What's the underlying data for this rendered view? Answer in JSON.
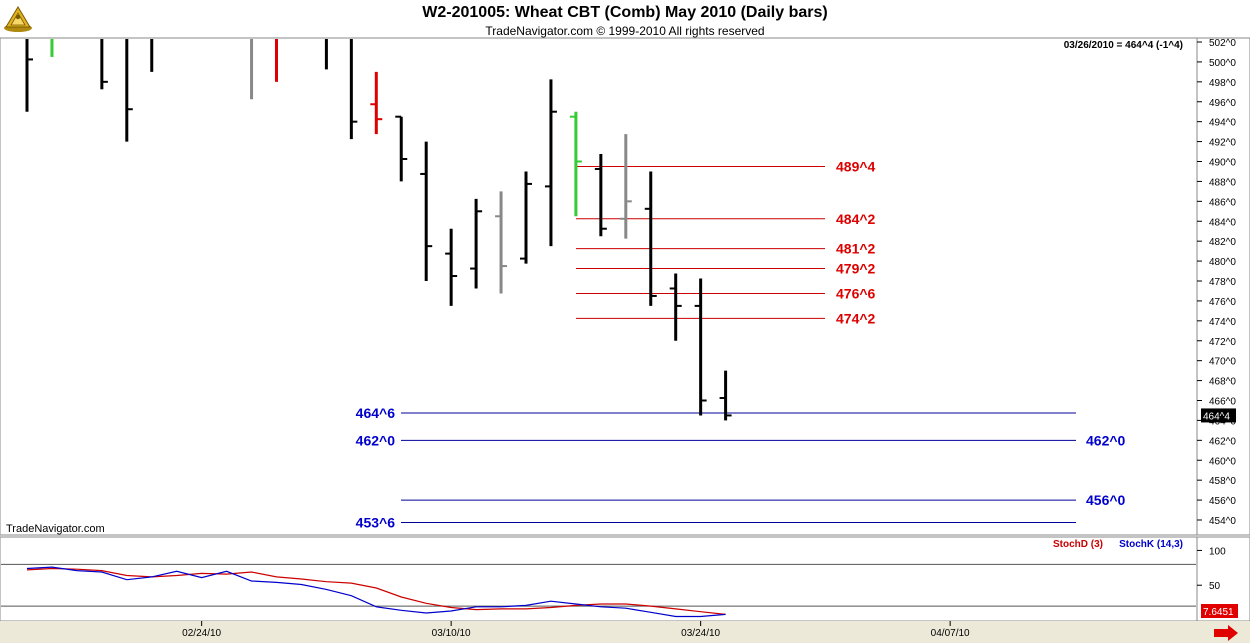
{
  "header": {
    "title": "W2-201005:  Wheat CBT (Comb) May 2010  (Daily bars)",
    "subtitle": "TradeNavigator.com © 1999-2010 All rights reserved",
    "quote": "03/26/2010 = 464^4 (-1^4)",
    "watermark": "TradeNavigator.com",
    "logo_icon": "navigator-sextant-logo-icon"
  },
  "colors": {
    "up_tick": "#33cc33",
    "down_tick": "#dd0000",
    "neutral_bar": "#000000",
    "grey_bar": "#888888",
    "resistance_line": "#cc0000",
    "support_line": "#000099",
    "resistance_label": "#dd0000",
    "support_label": "#0000cc",
    "stoch_d": "#cc0000",
    "stoch_k": "#0000cc"
  },
  "chart_data": [
    {
      "type": "ohlc",
      "price_unit": "cents (x^y = x + y/8)",
      "ylim": [
        453,
        503
      ],
      "y_ticks": [
        "502^0",
        "500^0",
        "498^0",
        "496^0",
        "494^0",
        "492^0",
        "490^0",
        "488^0",
        "486^0",
        "484^0",
        "482^0",
        "480^0",
        "478^0",
        "476^0",
        "474^0",
        "472^0",
        "470^0",
        "468^0",
        "466^0",
        "464^0",
        "462^0",
        "460^0",
        "458^0",
        "456^0",
        "454^0"
      ],
      "y_tick_values": [
        502,
        500,
        498,
        496,
        494,
        492,
        490,
        488,
        486,
        484,
        482,
        480,
        478,
        476,
        474,
        472,
        470,
        468,
        466,
        464,
        462,
        460,
        458,
        456,
        454
      ],
      "x_tick_labels": [
        "02/24/10",
        "03/10/10",
        "03/24/10",
        "04/07/10"
      ],
      "x_tick_bar_index": [
        7,
        17,
        27,
        37
      ],
      "last_price_label": "464^4",
      "last_price": 464.5,
      "bars": [
        {
          "high": 503,
          "low": 495,
          "open": 503,
          "close": 500.25,
          "color": "black"
        },
        {
          "high": 503,
          "low": 500.5,
          "open": 503,
          "close": 503,
          "color": "green"
        },
        {
          "high": 503,
          "low": 503,
          "open": 503,
          "close": 503,
          "color": "red"
        },
        {
          "high": 503,
          "low": 497.25,
          "open": 503,
          "close": 498,
          "color": "black"
        },
        {
          "high": 503,
          "low": 492,
          "open": 503,
          "close": 495.25,
          "color": "black"
        },
        {
          "high": 503,
          "low": 499,
          "open": 503,
          "close": 503,
          "color": "black"
        },
        {
          "high": 503,
          "low": 503,
          "open": 503,
          "close": 503,
          "color": "red"
        },
        {
          "high": 503,
          "low": 502.5,
          "open": 503,
          "close": 502.75,
          "color": "black"
        },
        {
          "high": 503,
          "low": 502.75,
          "open": 503,
          "close": 503,
          "color": "green"
        },
        {
          "high": 503,
          "low": 496.25,
          "open": 503,
          "close": 503,
          "color": "grey"
        },
        {
          "high": 503,
          "low": 498,
          "open": 503,
          "close": 503,
          "color": "red"
        },
        {
          "high": 503,
          "low": 503,
          "open": 503,
          "close": 503,
          "color": "black"
        },
        {
          "high": 503,
          "low": 499.25,
          "open": 503,
          "close": 503,
          "color": "black"
        },
        {
          "high": 503,
          "low": 492.25,
          "open": 503,
          "close": 494,
          "color": "black"
        },
        {
          "high": 499,
          "low": 492.75,
          "open": 495.75,
          "close": 494.25,
          "color": "red"
        },
        {
          "high": 494.5,
          "low": 488,
          "open": 494.5,
          "close": 490.25,
          "color": "black"
        },
        {
          "high": 492,
          "low": 478,
          "open": 488.75,
          "close": 481.5,
          "color": "black"
        },
        {
          "high": 483.25,
          "low": 475.5,
          "open": 480.75,
          "close": 478.5,
          "color": "black"
        },
        {
          "high": 486.25,
          "low": 477.25,
          "open": 479.25,
          "close": 485,
          "color": "black"
        },
        {
          "high": 487,
          "low": 476.75,
          "open": 484.5,
          "close": 479.5,
          "color": "grey"
        },
        {
          "high": 489,
          "low": 479.75,
          "open": 480.25,
          "close": 487.75,
          "color": "black"
        },
        {
          "high": 498.25,
          "low": 481.5,
          "open": 487.5,
          "close": 495,
          "color": "black"
        },
        {
          "high": 495,
          "low": 484.5,
          "open": 494.5,
          "close": 490,
          "color": "green"
        },
        {
          "high": 490.75,
          "low": 482.5,
          "open": 489.25,
          "close": 483.25,
          "color": "black"
        },
        {
          "high": 492.75,
          "low": 482.25,
          "open": 484.25,
          "close": 486,
          "color": "grey"
        },
        {
          "high": 489,
          "low": 475.5,
          "open": 485.25,
          "close": 476.5,
          "color": "black"
        },
        {
          "high": 478.75,
          "low": 472,
          "open": 477.25,
          "close": 475.5,
          "color": "black"
        },
        {
          "high": 478.25,
          "low": 464.5,
          "open": 475.5,
          "close": 466,
          "color": "black"
        },
        {
          "high": 469,
          "low": 464,
          "open": 466.25,
          "close": 464.5,
          "color": "black"
        }
      ],
      "levels": [
        {
          "label": "489^4",
          "value": 489.5,
          "kind": "resistance",
          "from_bar": 21,
          "to_bar": 32,
          "label_side": "right"
        },
        {
          "label": "484^2",
          "value": 484.25,
          "kind": "resistance",
          "from_bar": 21,
          "to_bar": 32,
          "label_side": "right"
        },
        {
          "label": "481^2",
          "value": 481.25,
          "kind": "resistance",
          "from_bar": 21,
          "to_bar": 32,
          "label_side": "right"
        },
        {
          "label": "479^2",
          "value": 479.25,
          "kind": "resistance",
          "from_bar": 21,
          "to_bar": 32,
          "label_side": "right"
        },
        {
          "label": "476^6",
          "value": 476.75,
          "kind": "resistance",
          "from_bar": 21,
          "to_bar": 32,
          "label_side": "right"
        },
        {
          "label": "474^2",
          "value": 474.25,
          "kind": "resistance",
          "from_bar": 21,
          "to_bar": 32,
          "label_side": "right"
        },
        {
          "label": "464^6",
          "value": 464.75,
          "kind": "support",
          "from_bar": 14,
          "to_bar": 41,
          "label_side": "left"
        },
        {
          "label": "462^0",
          "value": 462,
          "kind": "support",
          "from_bar": 14,
          "to_bar": 41,
          "label_side": "both"
        },
        {
          "label": "456^0",
          "value": 456,
          "kind": "support",
          "from_bar": 14,
          "to_bar": 41,
          "label_side": "right"
        },
        {
          "label": "453^6",
          "value": 453.75,
          "kind": "support",
          "from_bar": 14,
          "to_bar": 41,
          "label_side": "left"
        }
      ]
    },
    {
      "type": "line",
      "title": "StochD (3)  StochK (14,3)",
      "legend": [
        "StochD (3)",
        "StochK (14,3)"
      ],
      "ylim": [
        0,
        115
      ],
      "y_ticks": [
        "100",
        "50"
      ],
      "y_tick_values": [
        100,
        50
      ],
      "reference_lines": [
        80,
        20
      ],
      "last_value_label": "7.6451",
      "series": [
        {
          "name": "StochD (3)",
          "color": "#cc0000",
          "values": [
            72,
            74,
            73,
            71,
            64,
            62,
            64,
            67,
            66,
            69,
            62,
            59,
            55,
            53,
            46,
            33,
            24,
            18,
            15,
            16,
            16,
            18,
            21,
            23,
            23,
            20,
            16,
            12,
            8
          ]
        },
        {
          "name": "StochK (14,3)",
          "color": "#0000cc",
          "values": [
            74,
            76,
            71,
            69,
            58,
            62,
            70,
            61,
            70,
            56,
            54,
            51,
            44,
            35,
            19,
            14,
            10,
            13,
            19,
            19,
            21,
            27,
            23,
            19,
            17,
            11,
            5,
            5,
            8
          ]
        }
      ]
    }
  ]
}
